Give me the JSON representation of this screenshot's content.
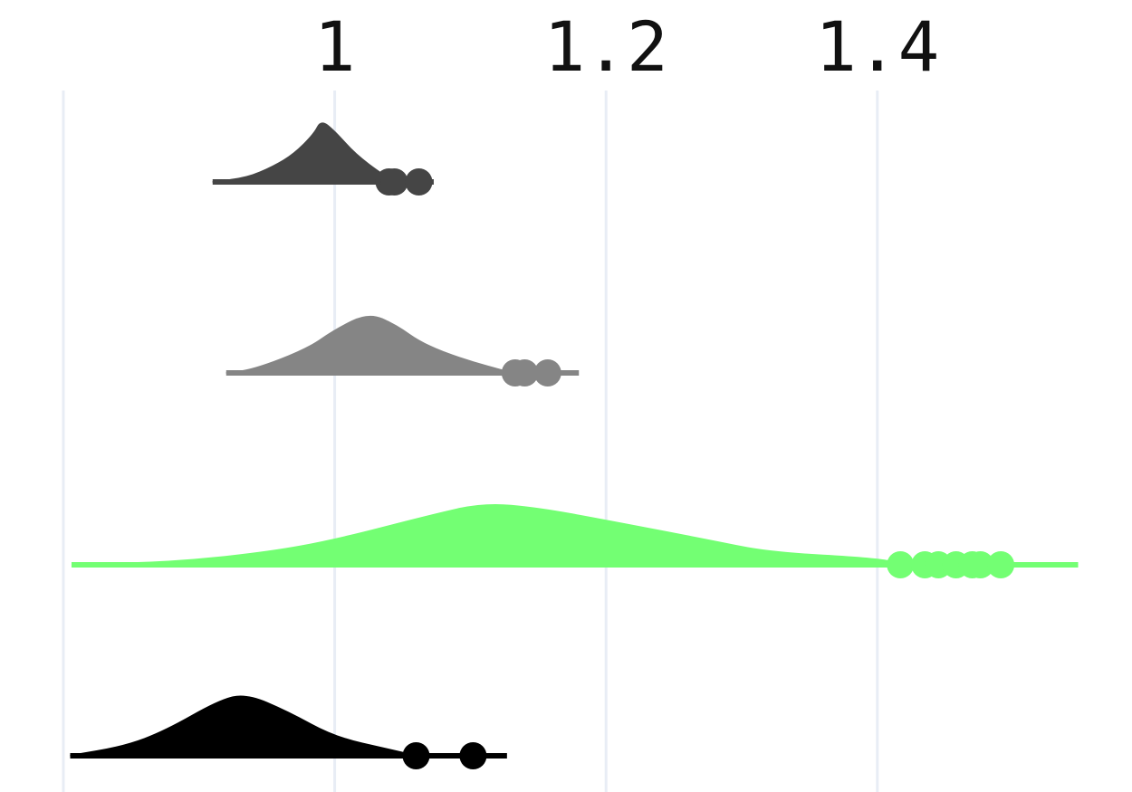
{
  "chart_data": {
    "type": "area",
    "title": "",
    "xlabel": "",
    "ylabel": "",
    "xlim": [
      0.8,
      1.55
    ],
    "grid": "vertical",
    "x_axis_position": "top",
    "x_ticks": [
      0.8,
      1.0,
      1.2,
      1.4
    ],
    "x_tick_labels": [
      "",
      "1",
      "1.2",
      "1.4"
    ],
    "series": [
      {
        "color": "#454545",
        "range": [
          0.91,
          1.073
        ],
        "density": [
          [
            0.91,
            0.0
          ],
          [
            0.935,
            0.06
          ],
          [
            0.955,
            0.25
          ],
          [
            0.97,
            0.45
          ],
          [
            0.985,
            0.78
          ],
          [
            0.99,
            1.0
          ],
          [
            1.0,
            0.82
          ],
          [
            1.015,
            0.45
          ],
          [
            1.035,
            0.12
          ],
          [
            1.045,
            0.0
          ]
        ],
        "outliers": [
          1.04,
          1.044,
          1.062
        ]
      },
      {
        "color": "#858585",
        "range": [
          0.92,
          1.18
        ],
        "density": [
          [
            0.92,
            0.0
          ],
          [
            0.94,
            0.05
          ],
          [
            0.98,
            0.4
          ],
          [
            1.0,
            0.72
          ],
          [
            1.025,
            1.0
          ],
          [
            1.045,
            0.8
          ],
          [
            1.065,
            0.48
          ],
          [
            1.095,
            0.22
          ],
          [
            1.13,
            0.0
          ]
        ],
        "outliers": [
          1.133,
          1.14,
          1.157
        ]
      },
      {
        "color": "#73ff73",
        "range": [
          0.806,
          1.548
        ],
        "density": [
          [
            0.806,
            0.0
          ],
          [
            0.88,
            0.04
          ],
          [
            0.95,
            0.2
          ],
          [
            1.0,
            0.4
          ],
          [
            1.07,
            0.8
          ],
          [
            1.11,
            1.0
          ],
          [
            1.15,
            0.92
          ],
          [
            1.2,
            0.72
          ],
          [
            1.28,
            0.38
          ],
          [
            1.32,
            0.2
          ],
          [
            1.4,
            0.1
          ],
          [
            1.42,
            0.0
          ]
        ],
        "outliers": [
          1.417,
          1.435,
          1.445,
          1.458,
          1.47,
          1.476,
          1.491
        ]
      },
      {
        "color": "#000000",
        "range": [
          0.805,
          1.127
        ],
        "density": [
          [
            0.805,
            0.0
          ],
          [
            0.845,
            0.15
          ],
          [
            0.875,
            0.4
          ],
          [
            0.915,
            0.9
          ],
          [
            0.935,
            1.0
          ],
          [
            0.965,
            0.72
          ],
          [
            1.0,
            0.3
          ],
          [
            1.04,
            0.1
          ],
          [
            1.06,
            0.0
          ]
        ],
        "outliers": [
          1.06,
          1.102
        ]
      }
    ]
  }
}
